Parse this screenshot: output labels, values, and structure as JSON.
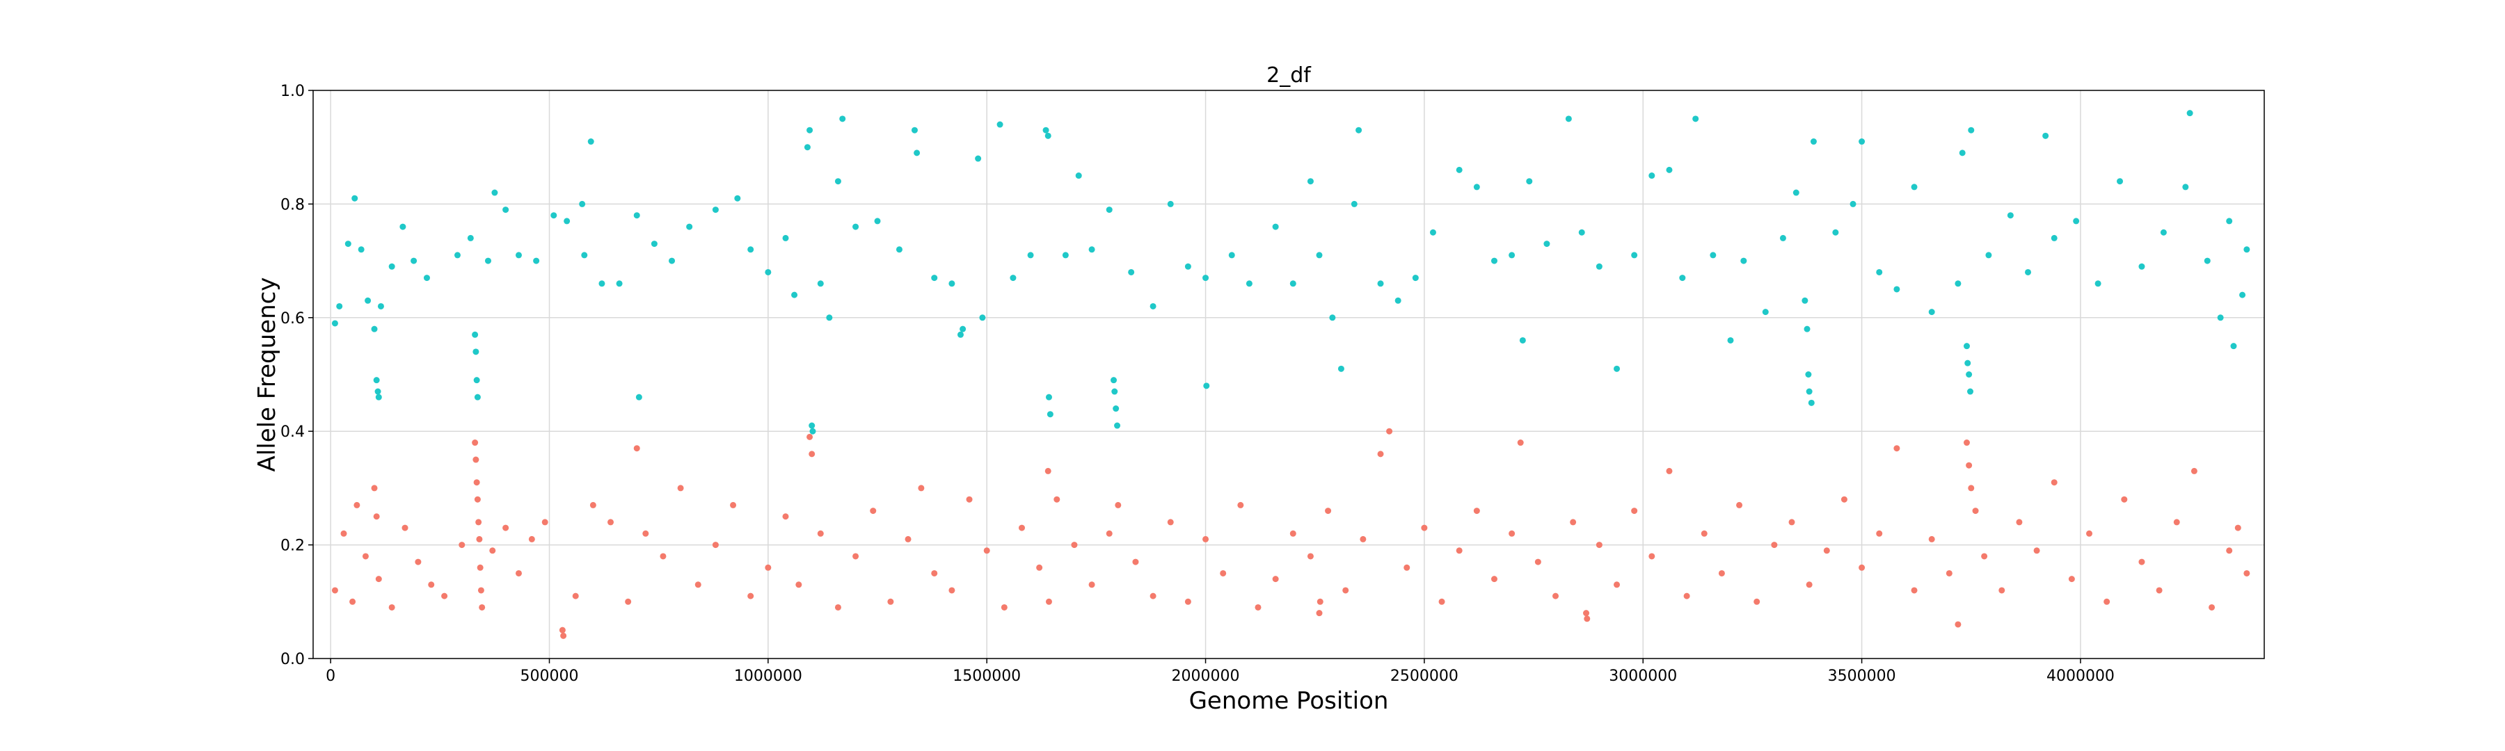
{
  "chart_data": {
    "type": "scatter",
    "title": "2_df",
    "xlabel": "Genome Position",
    "ylabel": "Allele Frequency",
    "xlim": [
      -40000,
      4420000
    ],
    "ylim": [
      0.0,
      1.0
    ],
    "x_ticks": [
      0,
      500000,
      1000000,
      1500000,
      2000000,
      2500000,
      3000000,
      3500000,
      4000000
    ],
    "y_ticks": [
      0.0,
      0.2,
      0.4,
      0.6,
      0.8,
      1.0
    ],
    "x_tick_labels": [
      "0",
      "500000",
      "1000000",
      "1500000",
      "2000000",
      "2500000",
      "3000000",
      "3500000",
      "4000000"
    ],
    "y_tick_labels": [
      "0.0",
      "0.2",
      "0.4",
      "0.6",
      "0.8",
      "1.0"
    ],
    "grid": true,
    "series": [
      {
        "color": "#1fc8c8",
        "points": [
          [
            10000,
            0.59
          ],
          [
            20000,
            0.62
          ],
          [
            40000,
            0.73
          ],
          [
            55000,
            0.81
          ],
          [
            70000,
            0.72
          ],
          [
            85000,
            0.63
          ],
          [
            100000,
            0.58
          ],
          [
            105000,
            0.49
          ],
          [
            108000,
            0.47
          ],
          [
            110000,
            0.46
          ],
          [
            115000,
            0.62
          ],
          [
            140000,
            0.69
          ],
          [
            165000,
            0.76
          ],
          [
            190000,
            0.7
          ],
          [
            220000,
            0.67
          ],
          [
            290000,
            0.71
          ],
          [
            320000,
            0.74
          ],
          [
            330000,
            0.57
          ],
          [
            332000,
            0.54
          ],
          [
            334000,
            0.49
          ],
          [
            336000,
            0.46
          ],
          [
            360000,
            0.7
          ],
          [
            375000,
            0.82
          ],
          [
            400000,
            0.79
          ],
          [
            430000,
            0.71
          ],
          [
            470000,
            0.7
          ],
          [
            510000,
            0.78
          ],
          [
            540000,
            0.77
          ],
          [
            575000,
            0.8
          ],
          [
            580000,
            0.71
          ],
          [
            595000,
            0.91
          ],
          [
            620000,
            0.66
          ],
          [
            660000,
            0.66
          ],
          [
            700000,
            0.78
          ],
          [
            705000,
            0.46
          ],
          [
            740000,
            0.73
          ],
          [
            780000,
            0.7
          ],
          [
            820000,
            0.76
          ],
          [
            880000,
            0.79
          ],
          [
            930000,
            0.81
          ],
          [
            960000,
            0.72
          ],
          [
            1000000,
            0.68
          ],
          [
            1040000,
            0.74
          ],
          [
            1060000,
            0.64
          ],
          [
            1090000,
            0.9
          ],
          [
            1095000,
            0.93
          ],
          [
            1100000,
            0.41
          ],
          [
            1102000,
            0.4
          ],
          [
            1120000,
            0.66
          ],
          [
            1140000,
            0.6
          ],
          [
            1160000,
            0.84
          ],
          [
            1170000,
            0.95
          ],
          [
            1200000,
            0.76
          ],
          [
            1250000,
            0.77
          ],
          [
            1300000,
            0.72
          ],
          [
            1335000,
            0.93
          ],
          [
            1340000,
            0.89
          ],
          [
            1380000,
            0.67
          ],
          [
            1420000,
            0.66
          ],
          [
            1440000,
            0.57
          ],
          [
            1445000,
            0.58
          ],
          [
            1480000,
            0.88
          ],
          [
            1490000,
            0.6
          ],
          [
            1530000,
            0.94
          ],
          [
            1560000,
            0.67
          ],
          [
            1600000,
            0.71
          ],
          [
            1635000,
            0.93
          ],
          [
            1640000,
            0.92
          ],
          [
            1642000,
            0.46
          ],
          [
            1645000,
            0.43
          ],
          [
            1680000,
            0.71
          ],
          [
            1710000,
            0.85
          ],
          [
            1740000,
            0.72
          ],
          [
            1780000,
            0.79
          ],
          [
            1790000,
            0.49
          ],
          [
            1792000,
            0.47
          ],
          [
            1795000,
            0.44
          ],
          [
            1798000,
            0.41
          ],
          [
            1830000,
            0.68
          ],
          [
            1880000,
            0.62
          ],
          [
            1920000,
            0.8
          ],
          [
            1960000,
            0.69
          ],
          [
            2000000,
            0.67
          ],
          [
            2002000,
            0.48
          ],
          [
            2060000,
            0.71
          ],
          [
            2100000,
            0.66
          ],
          [
            2160000,
            0.76
          ],
          [
            2200000,
            0.66
          ],
          [
            2240000,
            0.84
          ],
          [
            2260000,
            0.71
          ],
          [
            2290000,
            0.6
          ],
          [
            2310000,
            0.51
          ],
          [
            2340000,
            0.8
          ],
          [
            2350000,
            0.93
          ],
          [
            2400000,
            0.66
          ],
          [
            2440000,
            0.63
          ],
          [
            2480000,
            0.67
          ],
          [
            2520000,
            0.75
          ],
          [
            2580000,
            0.86
          ],
          [
            2620000,
            0.83
          ],
          [
            2660000,
            0.7
          ],
          [
            2700000,
            0.71
          ],
          [
            2725000,
            0.56
          ],
          [
            2740000,
            0.84
          ],
          [
            2780000,
            0.73
          ],
          [
            2830000,
            0.95
          ],
          [
            2860000,
            0.75
          ],
          [
            2900000,
            0.69
          ],
          [
            2940000,
            0.51
          ],
          [
            2980000,
            0.71
          ],
          [
            3020000,
            0.85
          ],
          [
            3060000,
            0.86
          ],
          [
            3090000,
            0.67
          ],
          [
            3120000,
            0.95
          ],
          [
            3160000,
            0.71
          ],
          [
            3200000,
            0.56
          ],
          [
            3230000,
            0.7
          ],
          [
            3280000,
            0.61
          ],
          [
            3320000,
            0.74
          ],
          [
            3350000,
            0.82
          ],
          [
            3370000,
            0.63
          ],
          [
            3375000,
            0.58
          ],
          [
            3378000,
            0.5
          ],
          [
            3380000,
            0.47
          ],
          [
            3385000,
            0.45
          ],
          [
            3390000,
            0.91
          ],
          [
            3440000,
            0.75
          ],
          [
            3480000,
            0.8
          ],
          [
            3500000,
            0.91
          ],
          [
            3540000,
            0.68
          ],
          [
            3580000,
            0.65
          ],
          [
            3620000,
            0.83
          ],
          [
            3660000,
            0.61
          ],
          [
            3720000,
            0.66
          ],
          [
            3730000,
            0.89
          ],
          [
            3740000,
            0.55
          ],
          [
            3742000,
            0.52
          ],
          [
            3745000,
            0.5
          ],
          [
            3748000,
            0.47
          ],
          [
            3750000,
            0.93
          ],
          [
            3790000,
            0.71
          ],
          [
            3840000,
            0.78
          ],
          [
            3880000,
            0.68
          ],
          [
            3920000,
            0.92
          ],
          [
            3940000,
            0.74
          ],
          [
            3990000,
            0.77
          ],
          [
            4040000,
            0.66
          ],
          [
            4090000,
            0.84
          ],
          [
            4140000,
            0.69
          ],
          [
            4190000,
            0.75
          ],
          [
            4240000,
            0.83
          ],
          [
            4250000,
            0.96
          ],
          [
            4290000,
            0.7
          ],
          [
            4320000,
            0.6
          ],
          [
            4340000,
            0.77
          ],
          [
            4350000,
            0.55
          ],
          [
            4370000,
            0.64
          ],
          [
            4380000,
            0.72
          ]
        ]
      },
      {
        "color": "#f47a6b",
        "points": [
          [
            10000,
            0.12
          ],
          [
            30000,
            0.22
          ],
          [
            50000,
            0.1
          ],
          [
            60000,
            0.27
          ],
          [
            80000,
            0.18
          ],
          [
            100000,
            0.3
          ],
          [
            105000,
            0.25
          ],
          [
            110000,
            0.14
          ],
          [
            140000,
            0.09
          ],
          [
            170000,
            0.23
          ],
          [
            200000,
            0.17
          ],
          [
            230000,
            0.13
          ],
          [
            260000,
            0.11
          ],
          [
            300000,
            0.2
          ],
          [
            330000,
            0.38
          ],
          [
            332000,
            0.35
          ],
          [
            334000,
            0.31
          ],
          [
            336000,
            0.28
          ],
          [
            338000,
            0.24
          ],
          [
            340000,
            0.21
          ],
          [
            342000,
            0.16
          ],
          [
            344000,
            0.12
          ],
          [
            346000,
            0.09
          ],
          [
            370000,
            0.19
          ],
          [
            400000,
            0.23
          ],
          [
            430000,
            0.15
          ],
          [
            460000,
            0.21
          ],
          [
            490000,
            0.24
          ],
          [
            530000,
            0.05
          ],
          [
            532000,
            0.04
          ],
          [
            560000,
            0.11
          ],
          [
            600000,
            0.27
          ],
          [
            640000,
            0.24
          ],
          [
            680000,
            0.1
          ],
          [
            700000,
            0.37
          ],
          [
            720000,
            0.22
          ],
          [
            760000,
            0.18
          ],
          [
            800000,
            0.3
          ],
          [
            840000,
            0.13
          ],
          [
            880000,
            0.2
          ],
          [
            920000,
            0.27
          ],
          [
            960000,
            0.11
          ],
          [
            1000000,
            0.16
          ],
          [
            1040000,
            0.25
          ],
          [
            1070000,
            0.13
          ],
          [
            1095000,
            0.39
          ],
          [
            1100000,
            0.36
          ],
          [
            1120000,
            0.22
          ],
          [
            1160000,
            0.09
          ],
          [
            1200000,
            0.18
          ],
          [
            1240000,
            0.26
          ],
          [
            1280000,
            0.1
          ],
          [
            1320000,
            0.21
          ],
          [
            1350000,
            0.3
          ],
          [
            1380000,
            0.15
          ],
          [
            1420000,
            0.12
          ],
          [
            1460000,
            0.28
          ],
          [
            1500000,
            0.19
          ],
          [
            1540000,
            0.09
          ],
          [
            1580000,
            0.23
          ],
          [
            1620000,
            0.16
          ],
          [
            1640000,
            0.33
          ],
          [
            1642000,
            0.1
          ],
          [
            1660000,
            0.28
          ],
          [
            1700000,
            0.2
          ],
          [
            1740000,
            0.13
          ],
          [
            1780000,
            0.22
          ],
          [
            1800000,
            0.27
          ],
          [
            1840000,
            0.17
          ],
          [
            1880000,
            0.11
          ],
          [
            1920000,
            0.24
          ],
          [
            1960000,
            0.1
          ],
          [
            2000000,
            0.21
          ],
          [
            2040000,
            0.15
          ],
          [
            2080000,
            0.27
          ],
          [
            2120000,
            0.09
          ],
          [
            2160000,
            0.14
          ],
          [
            2200000,
            0.22
          ],
          [
            2240000,
            0.18
          ],
          [
            2260000,
            0.08
          ],
          [
            2262000,
            0.1
          ],
          [
            2280000,
            0.26
          ],
          [
            2320000,
            0.12
          ],
          [
            2360000,
            0.21
          ],
          [
            2400000,
            0.36
          ],
          [
            2420000,
            0.4
          ],
          [
            2460000,
            0.16
          ],
          [
            2500000,
            0.23
          ],
          [
            2540000,
            0.1
          ],
          [
            2580000,
            0.19
          ],
          [
            2620000,
            0.26
          ],
          [
            2660000,
            0.14
          ],
          [
            2700000,
            0.22
          ],
          [
            2720000,
            0.38
          ],
          [
            2760000,
            0.17
          ],
          [
            2800000,
            0.11
          ],
          [
            2840000,
            0.24
          ],
          [
            2870000,
            0.08
          ],
          [
            2872000,
            0.07
          ],
          [
            2900000,
            0.2
          ],
          [
            2940000,
            0.13
          ],
          [
            2980000,
            0.26
          ],
          [
            3020000,
            0.18
          ],
          [
            3060000,
            0.33
          ],
          [
            3100000,
            0.11
          ],
          [
            3140000,
            0.22
          ],
          [
            3180000,
            0.15
          ],
          [
            3220000,
            0.27
          ],
          [
            3260000,
            0.1
          ],
          [
            3300000,
            0.2
          ],
          [
            3340000,
            0.24
          ],
          [
            3380000,
            0.13
          ],
          [
            3420000,
            0.19
          ],
          [
            3460000,
            0.28
          ],
          [
            3500000,
            0.16
          ],
          [
            3540000,
            0.22
          ],
          [
            3580000,
            0.37
          ],
          [
            3620000,
            0.12
          ],
          [
            3660000,
            0.21
          ],
          [
            3700000,
            0.15
          ],
          [
            3720000,
            0.06
          ],
          [
            3740000,
            0.38
          ],
          [
            3745000,
            0.34
          ],
          [
            3750000,
            0.3
          ],
          [
            3760000,
            0.26
          ],
          [
            3780000,
            0.18
          ],
          [
            3820000,
            0.12
          ],
          [
            3860000,
            0.24
          ],
          [
            3900000,
            0.19
          ],
          [
            3940000,
            0.31
          ],
          [
            3980000,
            0.14
          ],
          [
            4020000,
            0.22
          ],
          [
            4060000,
            0.1
          ],
          [
            4100000,
            0.28
          ],
          [
            4140000,
            0.17
          ],
          [
            4180000,
            0.12
          ],
          [
            4220000,
            0.24
          ],
          [
            4260000,
            0.33
          ],
          [
            4300000,
            0.09
          ],
          [
            4340000,
            0.19
          ],
          [
            4360000,
            0.23
          ],
          [
            4380000,
            0.15
          ]
        ]
      }
    ]
  }
}
